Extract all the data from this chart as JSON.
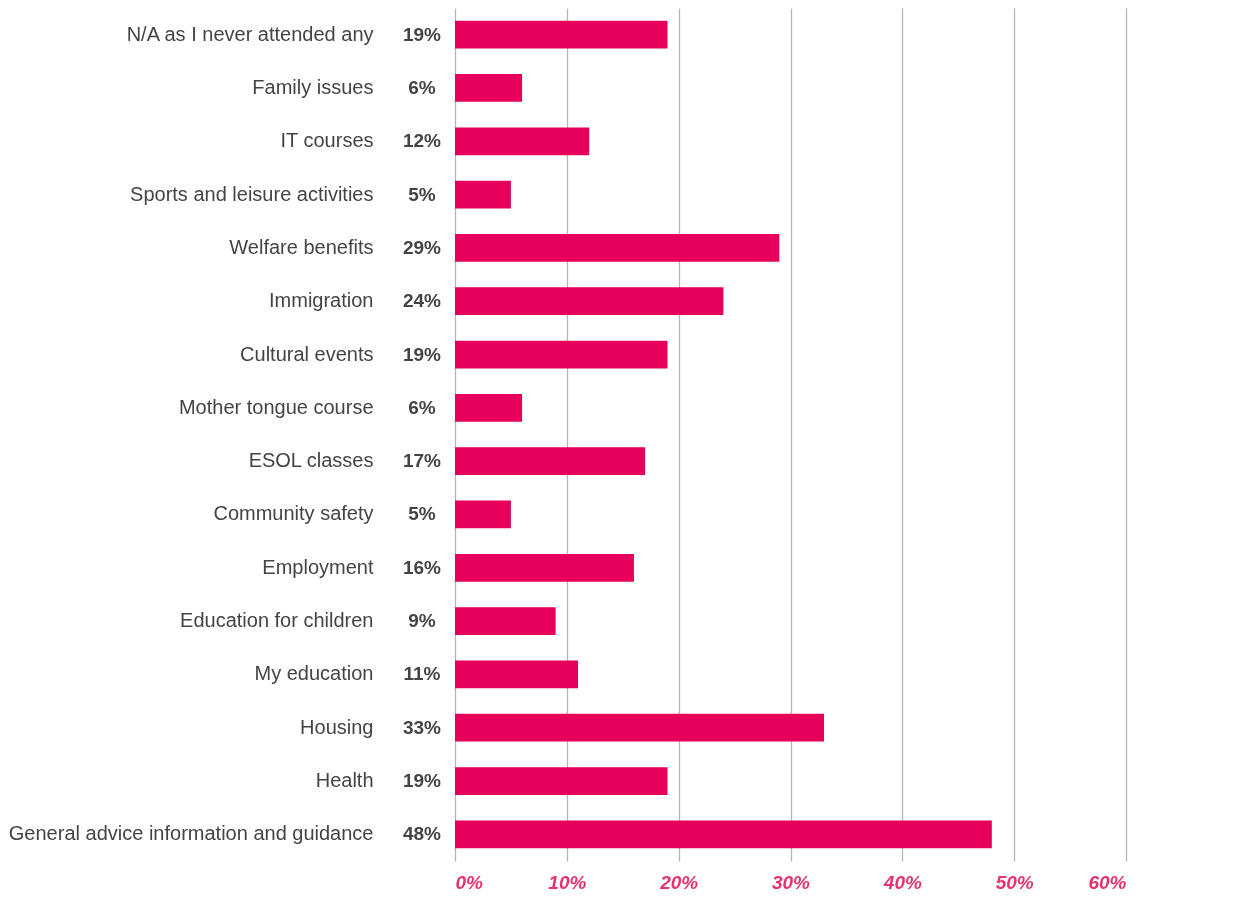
{
  "chart_data": {
    "type": "bar",
    "orientation": "horizontal",
    "categories": [
      "N/A as I never attended any",
      "Family issues",
      "IT courses",
      "Sports and leisure activities",
      "Welfare benefits",
      "Immigration",
      "Cultural events",
      "Mother tongue course",
      "ESOL classes",
      "Community safety",
      "Employment",
      "Education for children",
      "My education",
      "Housing",
      "Health",
      "General advice information and guidance"
    ],
    "values": [
      19,
      6,
      12,
      5,
      29,
      24,
      19,
      6,
      17,
      5,
      16,
      9,
      11,
      33,
      19,
      48
    ],
    "value_labels": [
      "19%",
      "6%",
      "12%",
      "5%",
      "29%",
      "24%",
      "19%",
      "6%",
      "17%",
      "5%",
      "16%",
      "9%",
      "11%",
      "33%",
      "19%",
      "48%"
    ],
    "color": "#e6005c",
    "xlim": [
      0,
      60
    ],
    "xticks": [
      {
        "value": 0,
        "label": "0%"
      },
      {
        "value": 10,
        "label": "10%"
      },
      {
        "value": 20,
        "label": "20%"
      },
      {
        "value": 30,
        "label": "30%"
      },
      {
        "value": 40,
        "label": "40%"
      },
      {
        "value": 50,
        "label": "50%"
      },
      {
        "value": 60,
        "label": "60%"
      }
    ],
    "grid": "x"
  }
}
